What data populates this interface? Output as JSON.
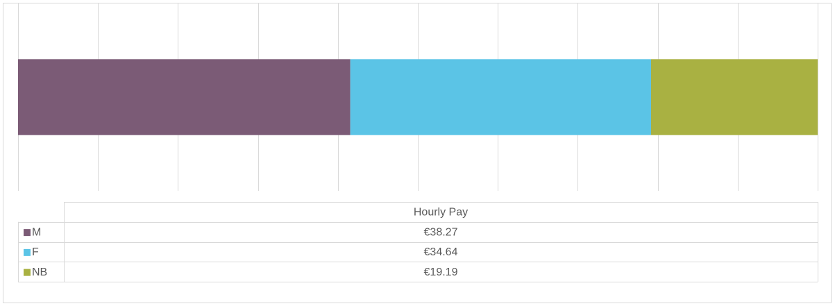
{
  "chart_data": {
    "type": "stacked-bar-h",
    "categories": [
      "Hourly Pay"
    ],
    "series": [
      {
        "name": "M",
        "color": "#7b5b76",
        "values": [
          38.27
        ],
        "value_labels": [
          "€38.27"
        ]
      },
      {
        "name": "F",
        "color": "#5bc4e6",
        "values": [
          34.64
        ],
        "value_labels": [
          "€34.64"
        ]
      },
      {
        "name": "NB",
        "color": "#a9b142",
        "values": [
          19.19
        ],
        "value_labels": [
          "€19.19"
        ]
      }
    ],
    "xlim": [
      0,
      92.1
    ],
    "xticks": [
      0,
      9.21,
      18.42,
      27.63,
      36.84,
      46.05,
      55.26,
      64.47,
      73.68,
      82.89,
      92.1
    ],
    "grid": true
  }
}
